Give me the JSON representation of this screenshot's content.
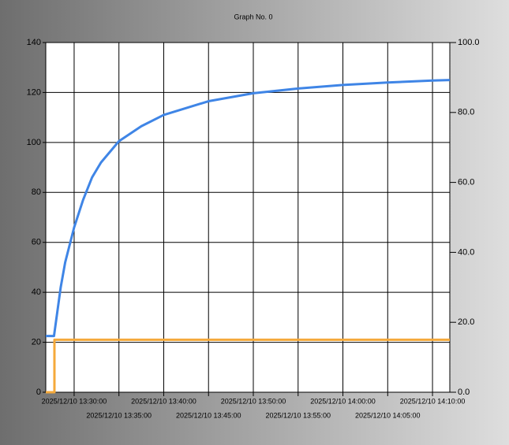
{
  "chart_data": {
    "type": "line",
    "title": "Graph No. 0",
    "xlim": [
      "2025/12/10 13:26:50",
      "2025/12/10 14:11:56"
    ],
    "xticks": [
      "2025/12/10 13:30:00",
      "2025/12/10 13:35:00",
      "2025/12/10 13:40:00",
      "2025/12/10 13:45:00",
      "2025/12/10 13:50:00",
      "2025/12/10 13:55:00",
      "2025/12/10 14:00:00",
      "2025/12/10 14:05:00",
      "2025/12/10 14:10:00"
    ],
    "ylim": [
      0,
      140
    ],
    "yticks": [
      0,
      20,
      40,
      60,
      80,
      100,
      120,
      140
    ],
    "y2lim": [
      0,
      100
    ],
    "y2ticks": [
      {
        "value": 0,
        "label": "0.0"
      },
      {
        "value": 20,
        "label": "20.0"
      },
      {
        "value": 40,
        "label": "40.0"
      },
      {
        "value": 60,
        "label": "60.0"
      },
      {
        "value": 80,
        "label": "80.0"
      },
      {
        "value": 100,
        "label": "100.0"
      }
    ],
    "grid": true,
    "series": [
      {
        "color": "#3f85e6",
        "x": [
          "2025/12/10 13:26:50",
          "2025/12/10 13:27:45",
          "2025/12/10 13:28:30",
          "2025/12/10 13:29:00",
          "2025/12/10 13:30:00",
          "2025/12/10 13:31:00",
          "2025/12/10 13:32:00",
          "2025/12/10 13:33:00",
          "2025/12/10 13:35:00",
          "2025/12/10 13:37:30",
          "2025/12/10 13:40:00",
          "2025/12/10 13:45:00",
          "2025/12/10 13:50:00",
          "2025/12/10 13:55:00",
          "2025/12/10 14:00:00",
          "2025/12/10 14:05:00",
          "2025/12/10 14:10:00",
          "2025/12/10 14:11:56"
        ],
        "values": [
          22.5,
          22.5,
          42,
          52,
          66,
          77,
          86,
          92,
          100.5,
          106.5,
          111,
          116.5,
          119.7,
          121.6,
          123,
          124,
          124.8,
          125
        ]
      },
      {
        "color": "#f5a93a",
        "axis": "y2",
        "x": [
          "2025/12/10 13:26:50",
          "2025/12/10 13:27:48",
          "2025/12/10 13:27:48",
          "2025/12/10 14:11:56"
        ],
        "values": [
          0,
          0,
          15,
          15
        ]
      }
    ]
  }
}
